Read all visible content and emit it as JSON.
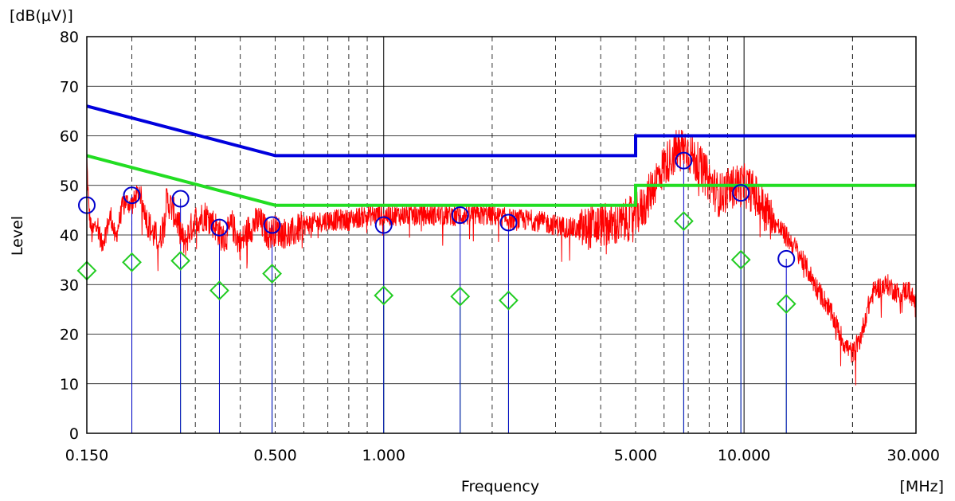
{
  "chart_data": {
    "type": "line",
    "title": "",
    "y_unit": "[dB(μV)]",
    "x_unit": "[MHz]",
    "xlabel": "Frequency",
    "ylabel": "Level",
    "x_scale": "log",
    "xlim": [
      0.15,
      30
    ],
    "ylim": [
      0,
      80
    ],
    "y_ticks": [
      0,
      10,
      20,
      30,
      40,
      50,
      60,
      70,
      80
    ],
    "x_ticks": [
      {
        "value": 0.15,
        "label": "0.150"
      },
      {
        "value": 0.5,
        "label": "0.500"
      },
      {
        "value": 1.0,
        "label": "1.000"
      },
      {
        "value": 5.0,
        "label": "5.000"
      },
      {
        "value": 10.0,
        "label": "10.000"
      },
      {
        "value": 30.0,
        "label": "30.000"
      }
    ],
    "grid": true,
    "colors": {
      "measurement": "#ff0000",
      "limit_qp": "#0000dd",
      "limit_av": "#22dd22",
      "qp_markers": "#0000cc",
      "av_markers": "#22cc22"
    },
    "limit_qp": [
      {
        "x": 0.15,
        "y": 66
      },
      {
        "x": 0.5,
        "y": 56
      },
      {
        "x": 5.0,
        "y": 56
      },
      {
        "x": 5.0,
        "y": 60
      },
      {
        "x": 30.0,
        "y": 60
      }
    ],
    "limit_av": [
      {
        "x": 0.15,
        "y": 56
      },
      {
        "x": 0.5,
        "y": 46
      },
      {
        "x": 5.0,
        "y": 46
      },
      {
        "x": 5.0,
        "y": 50
      },
      {
        "x": 30.0,
        "y": 50
      }
    ],
    "measurement_envelope": [
      [
        0.15,
        55
      ],
      [
        0.152,
        45
      ],
      [
        0.155,
        40
      ],
      [
        0.16,
        43
      ],
      [
        0.165,
        38
      ],
      [
        0.17,
        41
      ],
      [
        0.175,
        44
      ],
      [
        0.18,
        39
      ],
      [
        0.19,
        47
      ],
      [
        0.2,
        46
      ],
      [
        0.21,
        49
      ],
      [
        0.22,
        43
      ],
      [
        0.23,
        40
      ],
      [
        0.24,
        39
      ],
      [
        0.25,
        47
      ],
      [
        0.26,
        45
      ],
      [
        0.27,
        42
      ],
      [
        0.28,
        38
      ],
      [
        0.29,
        41
      ],
      [
        0.3,
        43
      ],
      [
        0.32,
        44
      ],
      [
        0.34,
        42
      ],
      [
        0.36,
        39
      ],
      [
        0.38,
        42
      ],
      [
        0.4,
        38
      ],
      [
        0.42,
        41
      ],
      [
        0.45,
        43
      ],
      [
        0.48,
        40
      ],
      [
        0.5,
        41
      ],
      [
        0.55,
        40
      ],
      [
        0.6,
        42
      ],
      [
        0.7,
        43
      ],
      [
        0.8,
        43
      ],
      [
        0.9,
        44
      ],
      [
        1.0,
        44
      ],
      [
        1.2,
        44
      ],
      [
        1.5,
        44
      ],
      [
        1.8,
        44
      ],
      [
        2.0,
        44
      ],
      [
        2.3,
        43
      ],
      [
        2.6,
        43
      ],
      [
        3.0,
        42
      ],
      [
        3.5,
        41
      ],
      [
        4.0,
        42
      ],
      [
        4.5,
        42
      ],
      [
        5.0,
        44
      ],
      [
        5.3,
        46
      ],
      [
        5.6,
        50
      ],
      [
        6.0,
        54
      ],
      [
        6.5,
        57
      ],
      [
        6.8,
        58
      ],
      [
        7.0,
        57
      ],
      [
        7.5,
        54
      ],
      [
        8.0,
        51
      ],
      [
        8.5,
        48
      ],
      [
        9.0,
        49
      ],
      [
        9.5,
        50
      ],
      [
        10.0,
        50
      ],
      [
        10.5,
        49
      ],
      [
        11.0,
        47
      ],
      [
        12.0,
        43
      ],
      [
        13.0,
        40
      ],
      [
        14.0,
        37
      ],
      [
        15.0,
        33
      ],
      [
        16.0,
        29
      ],
      [
        17.0,
        26
      ],
      [
        18.0,
        22
      ],
      [
        19.0,
        18
      ],
      [
        20.0,
        16
      ],
      [
        21.0,
        19
      ],
      [
        22.0,
        25
      ],
      [
        23.0,
        29
      ],
      [
        25.0,
        30
      ],
      [
        27.0,
        28
      ],
      [
        28.5,
        29
      ],
      [
        30.0,
        26
      ]
    ],
    "qp_markers": [
      {
        "x": 0.15,
        "y": 46.0
      },
      {
        "x": 0.2,
        "y": 48.0
      },
      {
        "x": 0.273,
        "y": 47.3
      },
      {
        "x": 0.35,
        "y": 41.5
      },
      {
        "x": 0.49,
        "y": 42.0
      },
      {
        "x": 1.0,
        "y": 42.0
      },
      {
        "x": 1.63,
        "y": 44.0
      },
      {
        "x": 2.22,
        "y": 42.5
      },
      {
        "x": 6.8,
        "y": 55.0
      },
      {
        "x": 9.8,
        "y": 48.5
      },
      {
        "x": 13.1,
        "y": 35.2
      }
    ],
    "av_markers": [
      {
        "x": 0.15,
        "y": 32.8
      },
      {
        "x": 0.2,
        "y": 34.5
      },
      {
        "x": 0.273,
        "y": 34.8
      },
      {
        "x": 0.35,
        "y": 28.8
      },
      {
        "x": 0.49,
        "y": 32.2
      },
      {
        "x": 1.0,
        "y": 27.8
      },
      {
        "x": 1.63,
        "y": 27.6
      },
      {
        "x": 2.22,
        "y": 26.8
      },
      {
        "x": 6.8,
        "y": 42.8
      },
      {
        "x": 9.8,
        "y": 35.0
      },
      {
        "x": 13.1,
        "y": 26.1
      }
    ]
  }
}
